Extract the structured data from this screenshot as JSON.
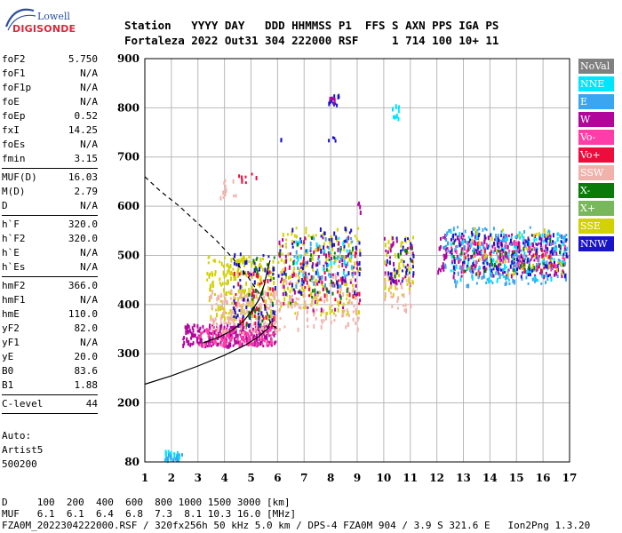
{
  "logo": {
    "line1": "Lowell",
    "line2": "DIGISONDE"
  },
  "header": {
    "line1": "Station   YYYY DAY   DDD HHMMSS P1  FFS S AXN PPS IGA PS",
    "line2": "Fortaleza 2022 Out31 304 222000 RSF     1 714 100 10+ 11"
  },
  "params_group1": [
    {
      "name": "foF2",
      "value": "5.750"
    },
    {
      "name": "foF1",
      "value": "N/A"
    },
    {
      "name": "foF1p",
      "value": "N/A"
    },
    {
      "name": "foE",
      "value": "N/A"
    },
    {
      "name": "foEp",
      "value": "0.52"
    },
    {
      "name": "fxI",
      "value": "14.25"
    },
    {
      "name": "foEs",
      "value": "N/A"
    },
    {
      "name": "fmin",
      "value": "3.15"
    }
  ],
  "params_group2": [
    {
      "name": "MUF(D)",
      "value": "16.03"
    },
    {
      "name": "M(D)",
      "value": "2.79"
    },
    {
      "name": "D",
      "value": "N/A"
    }
  ],
  "params_group3": [
    {
      "name": "h`F",
      "value": "320.0"
    },
    {
      "name": "h`F2",
      "value": "320.0"
    },
    {
      "name": "h`E",
      "value": "N/A"
    },
    {
      "name": "h`Es",
      "value": "N/A"
    }
  ],
  "params_group4": [
    {
      "name": "hmF2",
      "value": "366.0"
    },
    {
      "name": "hmF1",
      "value": "N/A"
    },
    {
      "name": "hmE",
      "value": "110.0"
    },
    {
      "name": "yF2",
      "value": "82.0"
    },
    {
      "name": "yF1",
      "value": "N/A"
    },
    {
      "name": "yE",
      "value": "20.0"
    },
    {
      "name": "B0",
      "value": "83.6"
    },
    {
      "name": "B1",
      "value": "1.88"
    }
  ],
  "params_group5": [
    {
      "name": "C-level",
      "value": "44"
    }
  ],
  "auto": {
    "line1": "Auto:",
    "line2": "Artist5",
    "line3": "500200"
  },
  "legend": [
    {
      "label": "NoVal",
      "color": "#808080"
    },
    {
      "label": "NNE",
      "color": "#00e5ff"
    },
    {
      "label": "E",
      "color": "#3aa6f2"
    },
    {
      "label": "W",
      "color": "#b0069c"
    },
    {
      "label": "Vo-",
      "color": "#ff3da8"
    },
    {
      "label": "Vo+",
      "color": "#ee0c3c"
    },
    {
      "label": "SSW",
      "color": "#f2b2ac"
    },
    {
      "label": "X-",
      "color": "#0a7a0a"
    },
    {
      "label": "X+",
      "color": "#78b85a"
    },
    {
      "label": "SSE",
      "color": "#d2d200"
    },
    {
      "label": "NNW",
      "color": "#1a14c8"
    }
  ],
  "footer": {
    "line1": "D     100  200  400  600  800 1000 1500 3000 [km]",
    "line2": "MUF   6.1  6.1  6.4  6.8  7.3  8.1 10.3 16.0 [MHz]",
    "line3": "FZA0M_2022304222000.RSF / 320fx256h 50 kHz 5.0 km / DPS-4 FZA0M 904 / 3.9 S 321.6 E   Ion2Png 1.3.20"
  },
  "chart_data": {
    "type": "scatter",
    "x": {
      "min": 1,
      "max": 17,
      "ticks": [
        "1",
        "2",
        "3",
        "4",
        "5",
        "6",
        "7",
        "8",
        "9",
        "10",
        "11",
        "12",
        "13",
        "14",
        "15",
        "16",
        "17"
      ]
    },
    "y": {
      "min": 80,
      "max": 900,
      "ticks": [
        "80",
        "200",
        "300",
        "400",
        "500",
        "600",
        "700",
        "800",
        "900"
      ]
    },
    "grid": true,
    "clusters": [
      {
        "color": "#00e5ff",
        "xmin": 1.7,
        "xmax": 2.3,
        "ymin": 85,
        "ymax": 105,
        "n": 25
      },
      {
        "color": "#3aa6f2",
        "xmin": 1.7,
        "xmax": 2.4,
        "ymin": 85,
        "ymax": 98,
        "n": 15
      },
      {
        "color": "#b0069c",
        "xmin": 2.4,
        "xmax": 5.9,
        "ymin": 318,
        "ymax": 362,
        "n": 260
      },
      {
        "color": "#ff3da8",
        "xmin": 3.0,
        "xmax": 5.9,
        "ymin": 320,
        "ymax": 352,
        "n": 110
      },
      {
        "color": "#d2d200",
        "xmin": 3.3,
        "xmax": 5.9,
        "ymin": 375,
        "ymax": 500,
        "n": 230
      },
      {
        "color": "#f2b2ac",
        "xmin": 3.4,
        "xmax": 6.0,
        "ymin": 345,
        "ymax": 430,
        "n": 170
      },
      {
        "color": "#1a14c8",
        "xmin": 4.3,
        "xmax": 5.9,
        "ymin": 360,
        "ymax": 510,
        "n": 60
      },
      {
        "color": "#ee0c3c",
        "xmin": 4.3,
        "xmax": 5.9,
        "ymin": 360,
        "ymax": 470,
        "n": 40
      },
      {
        "color": "#0a7a0a",
        "xmin": 4.8,
        "xmax": 5.9,
        "ymin": 360,
        "ymax": 500,
        "n": 25
      },
      {
        "color": "#d2d200",
        "xmin": 6.0,
        "xmax": 9.1,
        "ymin": 380,
        "ymax": 560,
        "n": 210
      },
      {
        "color": "#f2b2ac",
        "xmin": 6.0,
        "xmax": 9.1,
        "ymin": 350,
        "ymax": 470,
        "n": 120
      },
      {
        "color": "#b0069c",
        "xmin": 6.0,
        "xmax": 9.1,
        "ymin": 390,
        "ymax": 540,
        "n": 90
      },
      {
        "color": "#1a14c8",
        "xmin": 6.0,
        "xmax": 9.1,
        "ymin": 420,
        "ymax": 560,
        "n": 70
      },
      {
        "color": "#3aa6f2",
        "xmin": 6.6,
        "xmax": 8.9,
        "ymin": 440,
        "ymax": 540,
        "n": 40
      },
      {
        "color": "#00e5ff",
        "xmin": 6.6,
        "xmax": 8.9,
        "ymin": 450,
        "ymax": 540,
        "n": 35
      },
      {
        "color": "#ee0c3c",
        "xmin": 6.0,
        "xmax": 9.1,
        "ymin": 390,
        "ymax": 520,
        "n": 40
      },
      {
        "color": "#0a7a0a",
        "xmin": 6.0,
        "xmax": 9.1,
        "ymin": 400,
        "ymax": 540,
        "n": 25
      },
      {
        "color": "#d2d200",
        "xmin": 10.0,
        "xmax": 11.1,
        "ymin": 420,
        "ymax": 540,
        "n": 55
      },
      {
        "color": "#b0069c",
        "xmin": 10.0,
        "xmax": 11.1,
        "ymin": 440,
        "ymax": 540,
        "n": 40
      },
      {
        "color": "#f2b2ac",
        "xmin": 10.0,
        "xmax": 11.0,
        "ymin": 390,
        "ymax": 470,
        "n": 30
      },
      {
        "color": "#1a14c8",
        "xmin": 10.0,
        "xmax": 11.1,
        "ymin": 450,
        "ymax": 540,
        "n": 25
      },
      {
        "color": "#0a7a0a",
        "xmin": 10.2,
        "xmax": 11.1,
        "ymin": 460,
        "ymax": 520,
        "n": 10
      },
      {
        "color": "#b0069c",
        "xmin": 12.0,
        "xmax": 16.9,
        "ymin": 460,
        "ymax": 545,
        "n": 230
      },
      {
        "color": "#3aa6f2",
        "xmin": 12.2,
        "xmax": 16.9,
        "ymin": 440,
        "ymax": 560,
        "n": 200
      },
      {
        "color": "#00e5ff",
        "xmin": 12.5,
        "xmax": 16.9,
        "ymin": 450,
        "ymax": 550,
        "n": 140
      },
      {
        "color": "#1a14c8",
        "xmin": 12.5,
        "xmax": 16.9,
        "ymin": 460,
        "ymax": 550,
        "n": 130
      },
      {
        "color": "#ff3da8",
        "xmin": 12.5,
        "xmax": 16.9,
        "ymin": 470,
        "ymax": 530,
        "n": 70
      },
      {
        "color": "#d2d200",
        "xmin": 13.0,
        "xmax": 16.9,
        "ymin": 460,
        "ymax": 560,
        "n": 45
      },
      {
        "color": "#0a7a0a",
        "xmin": 12.5,
        "xmax": 16.9,
        "ymin": 470,
        "ymax": 540,
        "n": 30
      },
      {
        "color": "#ee0c3c",
        "xmin": 12.5,
        "xmax": 16.9,
        "ymin": 470,
        "ymax": 530,
        "n": 25
      },
      {
        "color": "#f2b2ac",
        "xmin": 3.8,
        "xmax": 4.4,
        "ymin": 620,
        "ymax": 660,
        "n": 12
      },
      {
        "color": "#ee0c3c",
        "xmin": 4.5,
        "xmax": 5.2,
        "ymin": 650,
        "ymax": 670,
        "n": 8
      },
      {
        "color": "#1a14c8",
        "xmin": 7.9,
        "xmax": 8.3,
        "ymin": 805,
        "ymax": 830,
        "n": 14
      },
      {
        "color": "#b0069c",
        "xmin": 7.9,
        "xmax": 8.2,
        "ymin": 810,
        "ymax": 825,
        "n": 6
      },
      {
        "color": "#00e5ff",
        "xmin": 10.3,
        "xmax": 10.6,
        "ymin": 775,
        "ymax": 812,
        "n": 10
      },
      {
        "color": "#1a14c8",
        "xmin": 7.9,
        "xmax": 8.2,
        "ymin": 736,
        "ymax": 748,
        "n": 4
      },
      {
        "color": "#1a14c8",
        "xmin": 6.1,
        "xmax": 6.2,
        "ymin": 733,
        "ymax": 740,
        "n": 2
      },
      {
        "color": "#b0069c",
        "xmin": 8.9,
        "xmax": 9.1,
        "ymin": 590,
        "ymax": 610,
        "n": 4
      }
    ],
    "curves": [
      {
        "name": "profile",
        "style": "solid",
        "color": "#000000",
        "points": [
          [
            1.0,
            238
          ],
          [
            2.0,
            255
          ],
          [
            3.0,
            275
          ],
          [
            4.0,
            297
          ],
          [
            4.8,
            318
          ],
          [
            5.3,
            335
          ],
          [
            5.6,
            350
          ],
          [
            5.75,
            366
          ]
        ]
      },
      {
        "name": "trace",
        "style": "solid",
        "color": "#000000",
        "points": [
          [
            3.2,
            322
          ],
          [
            3.8,
            334
          ],
          [
            4.3,
            348
          ],
          [
            4.7,
            365
          ],
          [
            5.0,
            385
          ],
          [
            5.3,
            410
          ],
          [
            5.5,
            440
          ],
          [
            5.62,
            470
          ],
          [
            5.72,
            490
          ]
        ]
      },
      {
        "name": "guide",
        "style": "dashed",
        "color": "#000000",
        "points": [
          [
            1.0,
            660
          ],
          [
            1.6,
            630
          ],
          [
            2.3,
            600
          ],
          [
            3.0,
            565
          ],
          [
            3.7,
            530
          ],
          [
            4.3,
            495
          ],
          [
            4.9,
            455
          ],
          [
            5.4,
            415
          ],
          [
            5.75,
            360
          ],
          [
            6.0,
            350
          ]
        ]
      }
    ]
  }
}
